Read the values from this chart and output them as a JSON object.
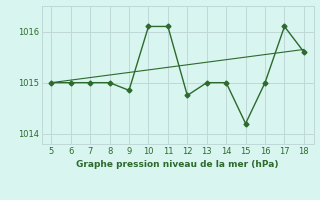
{
  "x": [
    5,
    6,
    7,
    8,
    9,
    10,
    11,
    12,
    13,
    14,
    15,
    16,
    17,
    18
  ],
  "y_line": [
    1015.0,
    1015.0,
    1015.0,
    1015.0,
    1014.85,
    1016.1,
    1016.1,
    1014.75,
    1015.0,
    1015.0,
    1014.2,
    1015.0,
    1016.1,
    1015.6
  ],
  "y_trend": [
    1015.0,
    1015.05,
    1015.1,
    1015.15,
    1015.2,
    1015.25,
    1015.3,
    1015.35,
    1015.4,
    1015.45,
    1015.5,
    1015.55,
    1015.6,
    1015.65
  ],
  "xlim": [
    4.5,
    18.5
  ],
  "ylim": [
    1013.8,
    1016.5
  ],
  "yticks": [
    1014,
    1015,
    1016
  ],
  "xticks": [
    5,
    6,
    7,
    8,
    9,
    10,
    11,
    12,
    13,
    14,
    15,
    16,
    17,
    18
  ],
  "line_color": "#2d6a2d",
  "trend_color": "#2d6a2d",
  "bg_color": "#d8f5f0",
  "grid_color": "#c0d8d8",
  "xlabel": "Graphe pression niveau de la mer (hPa)",
  "xlabel_color": "#2d6a2d",
  "tick_color": "#2d6a2d",
  "marker": "D",
  "marker_size": 2.5
}
